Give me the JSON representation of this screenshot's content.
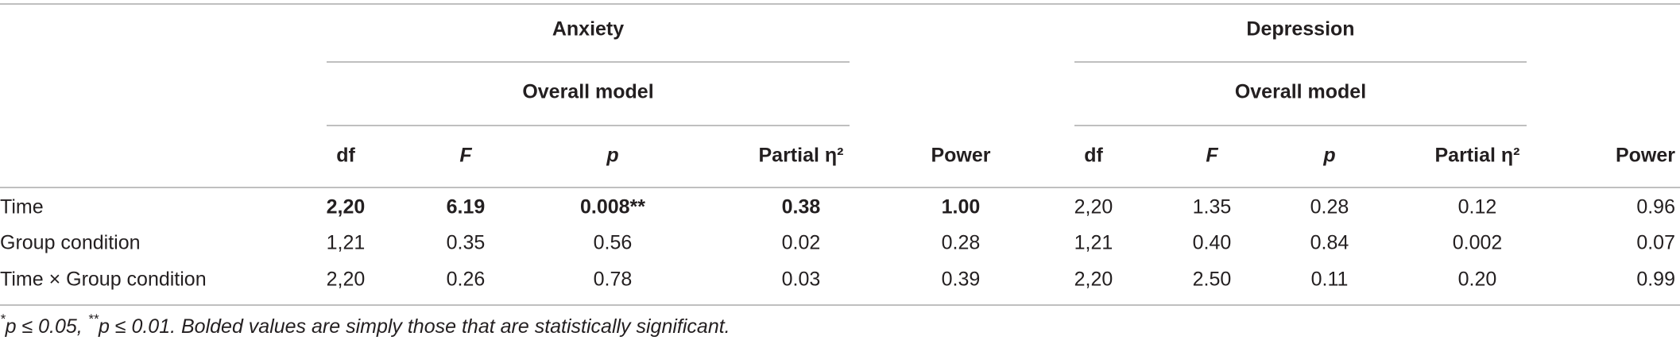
{
  "groups": [
    {
      "title": "Anxiety",
      "subtitle": "Overall model"
    },
    {
      "title": "Depression",
      "subtitle": "Overall model"
    }
  ],
  "columns": [
    "df",
    "F",
    "p",
    "Partial η²",
    "Power",
    "df",
    "F",
    "p",
    "Partial η²",
    "Power"
  ],
  "rows": [
    {
      "label": "Time",
      "cells": [
        "2,20",
        "6.19",
        "0.008**",
        "0.38",
        "1.00",
        "2,20",
        "1.35",
        "0.28",
        "0.12",
        "0.96"
      ],
      "bold": [
        true,
        true,
        true,
        true,
        true,
        false,
        false,
        false,
        false,
        false
      ]
    },
    {
      "label": "Group condition",
      "cells": [
        "1,21",
        "0.35",
        "0.56",
        "0.02",
        "0.28",
        "1,21",
        "0.40",
        "0.84",
        "0.002",
        "0.07"
      ],
      "bold": [
        false,
        false,
        false,
        false,
        false,
        false,
        false,
        false,
        false,
        false
      ]
    },
    {
      "label": "Time × Group condition",
      "cells": [
        "2,20",
        "0.26",
        "0.78",
        "0.03",
        "0.39",
        "2,20",
        "2.50",
        "0.11",
        "0.20",
        "0.99"
      ],
      "bold": [
        false,
        false,
        false,
        false,
        false,
        false,
        false,
        false,
        false,
        false
      ]
    }
  ],
  "footnote": [
    "*",
    "p ≤ 0.05, ",
    "**",
    "p ≤ 0.01. Bolded values are simply those that are statistically significant."
  ]
}
